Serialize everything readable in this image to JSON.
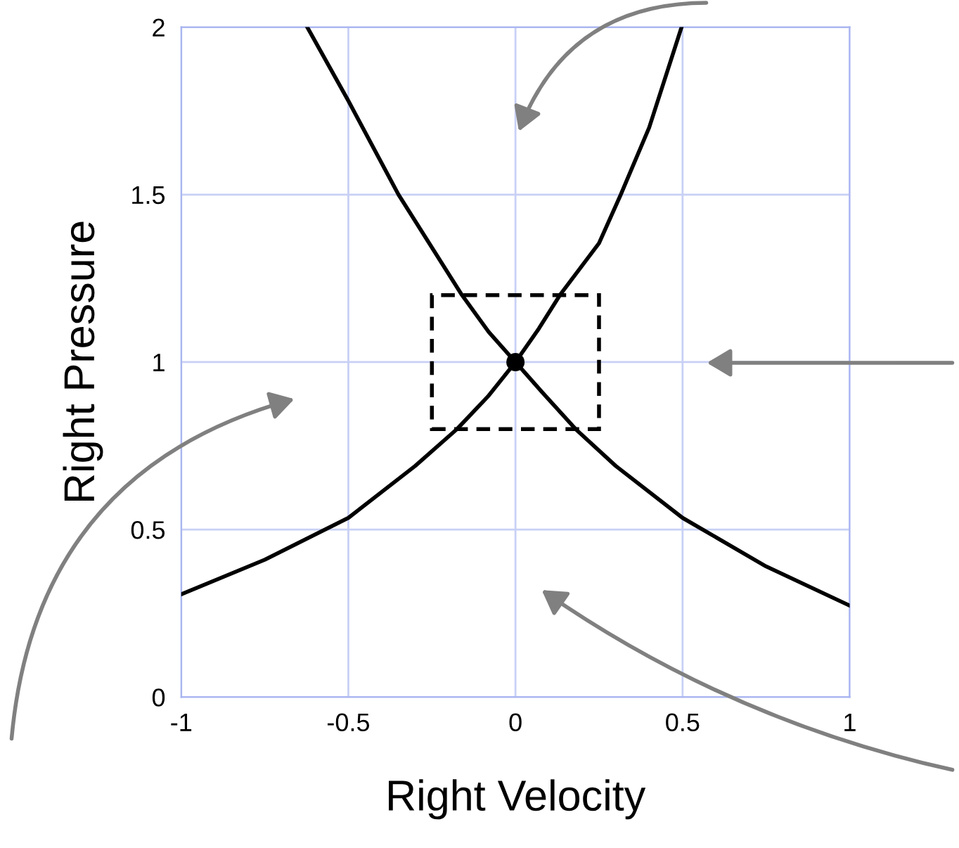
{
  "chart_data": {
    "type": "line",
    "xlabel": "Right Velocity",
    "ylabel": "Right Pressure",
    "xlim": [
      -1,
      1
    ],
    "ylim": [
      0,
      2
    ],
    "xticks": [
      -1,
      -0.5,
      0,
      0.5,
      1
    ],
    "yticks": [
      0,
      0.5,
      1,
      1.5,
      2
    ],
    "grid": true,
    "marker": "none",
    "line_style": "solid",
    "series": [
      {
        "color": "#000000",
        "x": [
          -0.623,
          -0.5,
          -0.35,
          -0.16,
          -0.08,
          0,
          0.08,
          0.18,
          0.3,
          0.5,
          0.75,
          1
        ],
        "values": [
          2.0,
          1.78,
          1.5,
          1.2,
          1.09,
          1,
          0.91,
          0.8,
          0.69,
          0.535,
          0.39,
          0.273
        ]
      },
      {
        "color": "#000000",
        "x": [
          -1,
          -0.75,
          -0.5,
          -0.3,
          -0.175,
          -0.08,
          0,
          0.07,
          0.133,
          0.25,
          0.315,
          0.4,
          0.497
        ],
        "values": [
          0.307,
          0.41,
          0.535,
          0.69,
          0.8,
          0.9,
          1,
          1.1,
          1.2,
          1.355,
          1.5,
          1.7,
          2.0
        ]
      },
      {
        "type": "scatter",
        "color": "#000000",
        "marker": "circle",
        "x": [
          0
        ],
        "values": [
          1
        ]
      }
    ]
  }
}
